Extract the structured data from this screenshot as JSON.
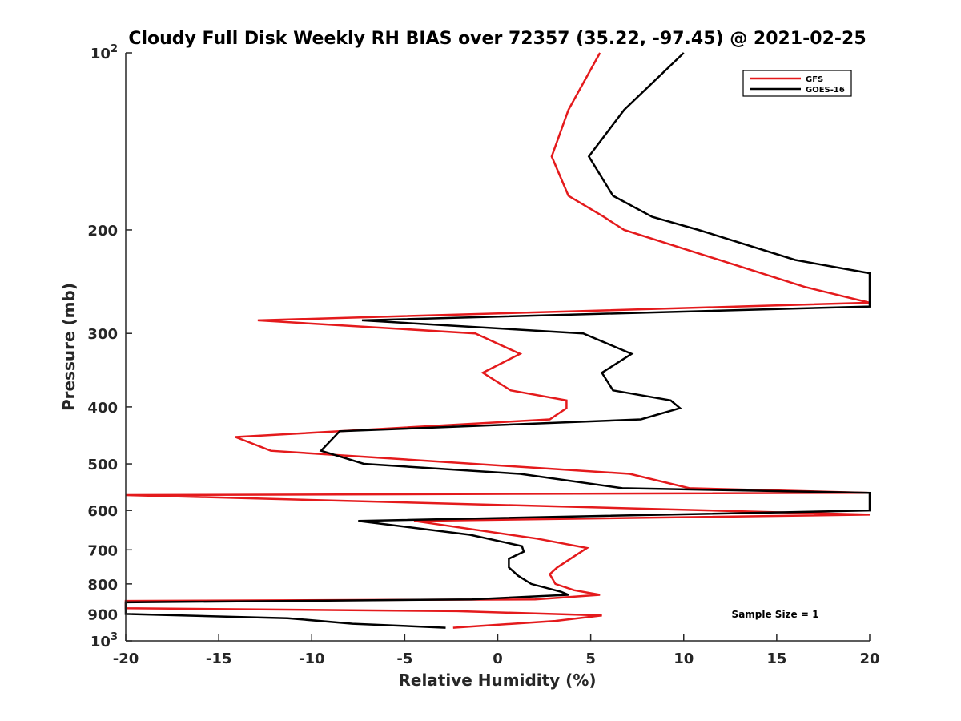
{
  "chart_data": {
    "type": "line",
    "title": "Cloudy Full Disk Weekly RH BIAS over 72357 (35.22, -97.45) @ 2021-02-25",
    "xlabel": "Relative Humidity (%)",
    "ylabel": "Pressure (mb)",
    "xlim": [
      -20,
      20
    ],
    "ylim": [
      100,
      1000
    ],
    "y_scale": "log",
    "y_reversed": true,
    "grid": false,
    "legend_position": "top-right",
    "x_ticks": [
      -20,
      -15,
      -10,
      -5,
      0,
      5,
      10,
      15,
      20
    ],
    "y_ticks": [
      {
        "value": 100,
        "base": "10",
        "exp": "2"
      },
      {
        "value": 200,
        "label": "200"
      },
      {
        "value": 300,
        "label": "300"
      },
      {
        "value": 400,
        "label": "400"
      },
      {
        "value": 500,
        "label": "500"
      },
      {
        "value": 600,
        "label": "600"
      },
      {
        "value": 700,
        "label": "700"
      },
      {
        "value": 800,
        "label": "800"
      },
      {
        "value": 900,
        "label": "900"
      },
      {
        "value": 1000,
        "base": "10",
        "exp": "3"
      }
    ],
    "series": [
      {
        "name": "GFS",
        "color": "#e41a1c",
        "points": [
          {
            "x": 5.5,
            "y": 100
          },
          {
            "x": 3.8,
            "y": 125
          },
          {
            "x": 2.9,
            "y": 150
          },
          {
            "x": 3.8,
            "y": 175
          },
          {
            "x": 5.7,
            "y": 190
          },
          {
            "x": 6.8,
            "y": 200
          },
          {
            "x": 16.5,
            "y": 250
          },
          {
            "x": 20,
            "y": 266
          },
          {
            "x": -12.9,
            "y": 285
          },
          {
            "x": -1.2,
            "y": 300
          },
          {
            "x": 1.2,
            "y": 325
          },
          {
            "x": -0.8,
            "y": 350
          },
          {
            "x": 0.7,
            "y": 375
          },
          {
            "x": 3.7,
            "y": 390
          },
          {
            "x": 3.7,
            "y": 402
          },
          {
            "x": 2.8,
            "y": 420
          },
          {
            "x": -14.1,
            "y": 450
          },
          {
            "x": -12.2,
            "y": 475
          },
          {
            "x": 7.1,
            "y": 520
          },
          {
            "x": 10.3,
            "y": 550
          },
          {
            "x": 20,
            "y": 560
          },
          {
            "x": -20,
            "y": 565
          },
          {
            "x": 20,
            "y": 610
          },
          {
            "x": -4.5,
            "y": 625
          },
          {
            "x": 2.1,
            "y": 670
          },
          {
            "x": 4.8,
            "y": 695
          },
          {
            "x": 4.2,
            "y": 715
          },
          {
            "x": 3.2,
            "y": 750
          },
          {
            "x": 2.8,
            "y": 770
          },
          {
            "x": 3.1,
            "y": 800
          },
          {
            "x": 4.1,
            "y": 820
          },
          {
            "x": 5.5,
            "y": 835
          },
          {
            "x": 2.0,
            "y": 850
          },
          {
            "x": -20,
            "y": 855
          },
          {
            "x": -20,
            "y": 880
          },
          {
            "x": -2.2,
            "y": 890
          },
          {
            "x": 5.6,
            "y": 905
          },
          {
            "x": 3.1,
            "y": 925
          },
          {
            "x": -2.4,
            "y": 950
          }
        ]
      },
      {
        "name": "GOES-16",
        "color": "#000000",
        "points": [
          {
            "x": 10.0,
            "y": 100
          },
          {
            "x": 6.8,
            "y": 125
          },
          {
            "x": 4.9,
            "y": 150
          },
          {
            "x": 6.2,
            "y": 175
          },
          {
            "x": 8.3,
            "y": 190
          },
          {
            "x": 10.8,
            "y": 200
          },
          {
            "x": 16.0,
            "y": 225
          },
          {
            "x": 20,
            "y": 237
          },
          {
            "x": 20,
            "y": 265
          },
          {
            "x": 20,
            "y": 270
          },
          {
            "x": -7.3,
            "y": 285
          },
          {
            "x": 4.6,
            "y": 300
          },
          {
            "x": 7.2,
            "y": 325
          },
          {
            "x": 5.6,
            "y": 350
          },
          {
            "x": 6.2,
            "y": 375
          },
          {
            "x": 9.3,
            "y": 390
          },
          {
            "x": 9.8,
            "y": 402
          },
          {
            "x": 7.7,
            "y": 420
          },
          {
            "x": -8.5,
            "y": 440
          },
          {
            "x": -9.5,
            "y": 475
          },
          {
            "x": -7.2,
            "y": 500
          },
          {
            "x": 1.2,
            "y": 520
          },
          {
            "x": 6.7,
            "y": 550
          },
          {
            "x": 20,
            "y": 560
          },
          {
            "x": 20,
            "y": 600
          },
          {
            "x": -7.5,
            "y": 625
          },
          {
            "x": -1.5,
            "y": 660
          },
          {
            "x": 1.3,
            "y": 690
          },
          {
            "x": 1.4,
            "y": 705
          },
          {
            "x": 0.6,
            "y": 725
          },
          {
            "x": 0.6,
            "y": 750
          },
          {
            "x": 1.1,
            "y": 775
          },
          {
            "x": 1.8,
            "y": 800
          },
          {
            "x": 3.4,
            "y": 825
          },
          {
            "x": 3.8,
            "y": 835
          },
          {
            "x": -1.4,
            "y": 850
          },
          {
            "x": -20,
            "y": 860
          },
          {
            "x": -20,
            "y": 900
          },
          {
            "x": -11.3,
            "y": 915
          },
          {
            "x": -7.8,
            "y": 935
          },
          {
            "x": -2.8,
            "y": 950
          }
        ]
      }
    ],
    "annotations": [
      {
        "text": "Sample Size = 1",
        "position": "bottom-right"
      }
    ]
  }
}
